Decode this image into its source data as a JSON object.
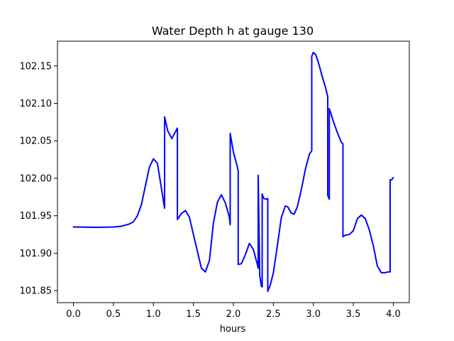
{
  "chart_data": {
    "type": "line",
    "title": "Water Depth h at gauge 130",
    "xlabel": "hours",
    "ylabel": "",
    "xlim": [
      -0.2,
      4.2
    ],
    "ylim": [
      101.834,
      102.183
    ],
    "grid": false,
    "legend": "none",
    "xticks": [
      0.0,
      0.5,
      1.0,
      1.5,
      2.0,
      2.5,
      3.0,
      3.5,
      4.0
    ],
    "xtick_labels": [
      "0.0",
      "0.5",
      "1.0",
      "1.5",
      "2.0",
      "2.5",
      "3.0",
      "3.5",
      "4.0"
    ],
    "yticks": [
      101.85,
      101.9,
      101.95,
      102.0,
      102.05,
      102.1,
      102.15
    ],
    "ytick_labels": [
      "101.85",
      "101.90",
      "101.95",
      "102.00",
      "102.05",
      "102.10",
      "102.15"
    ],
    "series": [
      {
        "color": "#0000ff",
        "x": [
          0.0,
          0.3,
          0.5,
          0.6,
          0.7,
          0.75,
          0.8,
          0.85,
          0.9,
          0.95,
          1.0,
          1.05,
          1.08,
          1.11,
          1.14,
          1.14,
          1.18,
          1.23,
          1.28,
          1.3,
          1.3,
          1.35,
          1.4,
          1.45,
          1.5,
          1.6,
          1.65,
          1.7,
          1.75,
          1.8,
          1.85,
          1.9,
          1.95,
          1.96,
          1.96,
          2.0,
          2.05,
          2.06,
          2.06,
          2.1,
          2.15,
          2.2,
          2.25,
          2.3,
          2.31,
          2.31,
          2.33,
          2.35,
          2.36,
          2.36,
          2.38,
          2.42,
          2.43,
          2.43,
          2.46,
          2.5,
          2.55,
          2.6,
          2.65,
          2.68,
          2.72,
          2.76,
          2.8,
          2.85,
          2.9,
          2.95,
          2.98,
          2.98,
          3.0,
          3.03,
          3.07,
          3.1,
          3.15,
          3.18,
          3.18,
          3.2,
          3.2,
          3.25,
          3.3,
          3.35,
          3.37,
          3.37,
          3.4,
          3.45,
          3.5,
          3.55,
          3.6,
          3.65,
          3.7,
          3.75,
          3.8,
          3.85,
          3.9,
          3.93,
          3.96,
          3.96,
          3.98,
          4.0
        ],
        "y": [
          101.935,
          101.9345,
          101.935,
          101.936,
          101.939,
          101.942,
          101.95,
          101.965,
          101.99,
          102.015,
          102.026,
          102.02,
          102.0,
          101.98,
          101.96,
          102.082,
          102.063,
          102.053,
          102.063,
          102.067,
          101.945,
          101.953,
          101.957,
          101.948,
          101.925,
          101.88,
          101.875,
          101.89,
          101.94,
          101.968,
          101.978,
          101.967,
          101.948,
          101.938,
          102.06,
          102.035,
          102.015,
          102.01,
          101.885,
          101.886,
          101.898,
          101.913,
          101.905,
          101.885,
          101.88,
          102.004,
          101.87,
          101.856,
          101.855,
          101.979,
          101.973,
          101.972,
          101.973,
          101.849,
          101.857,
          101.874,
          101.91,
          101.948,
          101.963,
          101.962,
          101.954,
          101.952,
          101.962,
          101.985,
          102.012,
          102.032,
          102.037,
          102.163,
          102.168,
          102.165,
          102.152,
          102.14,
          102.122,
          102.109,
          101.977,
          101.972,
          102.093,
          102.076,
          102.061,
          102.048,
          102.046,
          101.922,
          101.924,
          101.925,
          101.93,
          101.946,
          101.951,
          101.946,
          101.931,
          101.91,
          101.883,
          101.874,
          101.874,
          101.875,
          101.875,
          101.998,
          101.998,
          102.001
        ]
      }
    ]
  }
}
